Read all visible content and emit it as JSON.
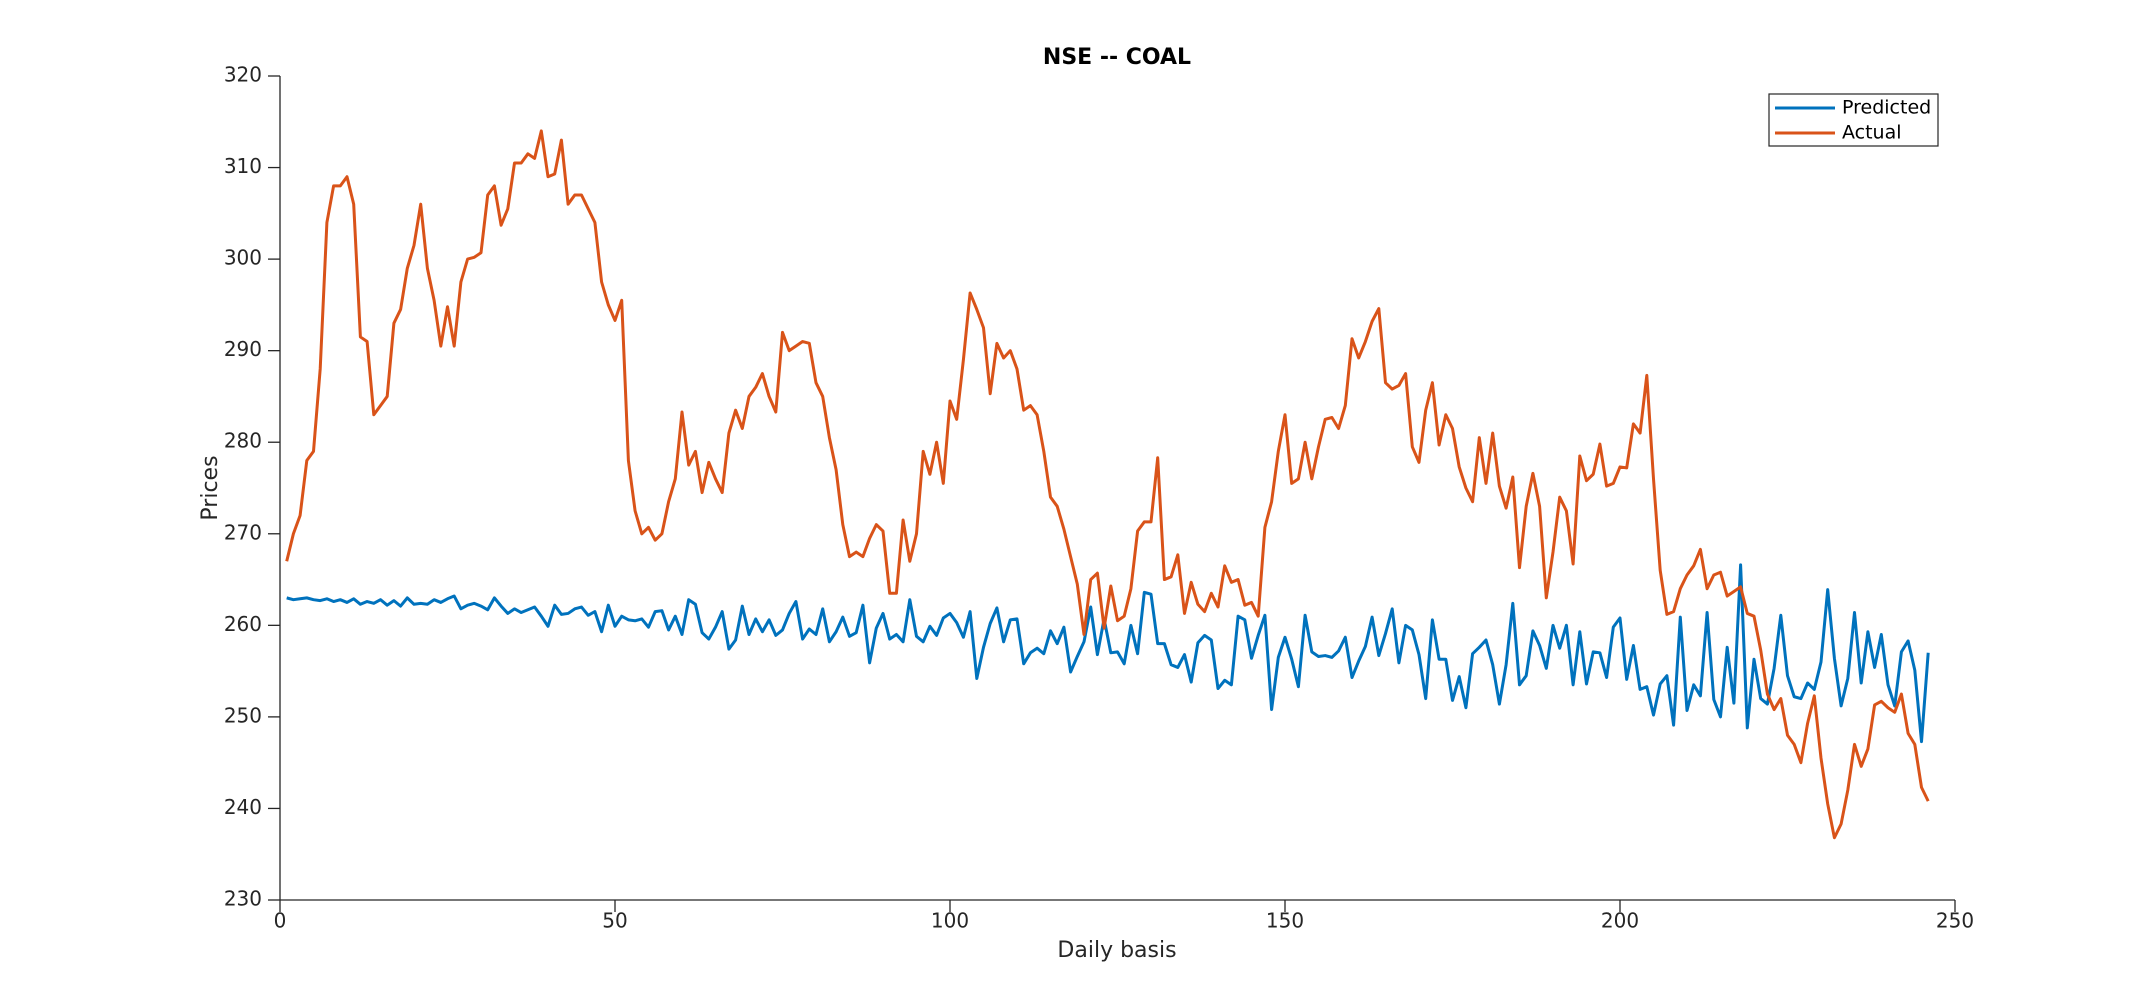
{
  "chart_data": {
    "type": "line",
    "title": "NSE -- COAL",
    "x_label": "Daily basis",
    "y_label": "Prices",
    "x": [
      1,
      2,
      3,
      4,
      5,
      6,
      7,
      8,
      9,
      10,
      11,
      12,
      13,
      14,
      15,
      16,
      17,
      18,
      19,
      20,
      21,
      22,
      23,
      24,
      25,
      26,
      27,
      28,
      29,
      30,
      31,
      32,
      33,
      34,
      35,
      36,
      37,
      38,
      39,
      40,
      41,
      42,
      43,
      44,
      45,
      46,
      47,
      48,
      49,
      50,
      51,
      52,
      53,
      54,
      55,
      56,
      57,
      58,
      59,
      60,
      61,
      62,
      63,
      64,
      65,
      66,
      67,
      68,
      69,
      70,
      71,
      72,
      73,
      74,
      75,
      76,
      77,
      78,
      79,
      80,
      81,
      82,
      83,
      84,
      85,
      86,
      87,
      88,
      89,
      90,
      91,
      92,
      93,
      94,
      95,
      96,
      97,
      98,
      99,
      100,
      101,
      102,
      103,
      104,
      105,
      106,
      107,
      108,
      109,
      110,
      111,
      112,
      113,
      114,
      115,
      116,
      117,
      118,
      119,
      120,
      121,
      122,
      123,
      124,
      125,
      126,
      127,
      128,
      129,
      130,
      131,
      132,
      133,
      134,
      135,
      136,
      137,
      138,
      139,
      140,
      141,
      142,
      143,
      144,
      145,
      146,
      147,
      148,
      149,
      150,
      151,
      152,
      153,
      154,
      155,
      156,
      157,
      158,
      159,
      160,
      161,
      162,
      163,
      164,
      165,
      166,
      167,
      168,
      169,
      170,
      171,
      172,
      173,
      174,
      175,
      176,
      177,
      178,
      179,
      180,
      181,
      182,
      183,
      184,
      185,
      186,
      187,
      188,
      189,
      190,
      191,
      192,
      193,
      194,
      195,
      196,
      197,
      198,
      199,
      200,
      201,
      202,
      203,
      204,
      205,
      206,
      207,
      208,
      209,
      210,
      211,
      212,
      213,
      214,
      215,
      216,
      217,
      218,
      219,
      220,
      221,
      222,
      223,
      224,
      225,
      226,
      227,
      228,
      229,
      230,
      231,
      232,
      233,
      234,
      235,
      236,
      237,
      238,
      239,
      240,
      241,
      242,
      243,
      244,
      245,
      246
    ],
    "series": [
      {
        "name": "Predicted",
        "color": "#0072bd",
        "values": [
          263,
          262.8,
          262.9,
          263,
          262.8,
          262.7,
          262.9,
          262.6,
          262.8,
          262.5,
          262.9,
          262.3,
          262.6,
          262.4,
          262.8,
          262.2,
          262.7,
          262.1,
          263,
          262.3,
          262.4,
          262.3,
          262.8,
          262.5,
          262.9,
          263.2,
          261.8,
          262.2,
          262.4,
          262.1,
          261.7,
          263,
          262.1,
          261.3,
          261.8,
          261.4,
          261.7,
          262,
          261,
          259.9,
          262.2,
          261.2,
          261.3,
          261.8,
          262,
          261.1,
          261.5,
          259.3,
          262.2,
          259.9,
          261,
          260.6,
          260.5,
          260.7,
          259.8,
          261.5,
          261.6,
          259.5,
          261,
          259,
          262.8,
          262.3,
          259.2,
          258.5,
          259.8,
          261.5,
          257.4,
          258.4,
          262.1,
          259,
          260.7,
          259.3,
          260.6,
          258.9,
          259.5,
          261.3,
          262.6,
          258.5,
          259.6,
          259,
          261.8,
          258.2,
          259.3,
          260.9,
          258.8,
          259.2,
          262.2,
          255.9,
          259.7,
          261.3,
          258.5,
          259,
          258.2,
          262.8,
          258.8,
          258.2,
          259.9,
          258.9,
          260.8,
          261.3,
          260.3,
          258.7,
          261.5,
          254.2,
          257.6,
          260.2,
          261.9,
          258.2,
          260.6,
          260.7,
          255.8,
          257,
          257.5,
          256.9,
          259.4,
          258,
          259.8,
          254.9,
          256.6,
          258.2,
          262,
          256.8,
          260.7,
          257,
          257.1,
          255.8,
          260,
          256.9,
          263.6,
          263.4,
          258,
          258,
          255.7,
          255.4,
          256.8,
          253.8,
          258.1,
          258.9,
          258.4,
          253.1,
          254,
          253.5,
          261,
          260.6,
          256.4,
          258.9,
          261.1,
          250.8,
          256.5,
          258.7,
          256.3,
          253.3,
          261.1,
          257.1,
          256.6,
          256.7,
          256.5,
          257.2,
          258.7,
          254.3,
          256.1,
          257.7,
          260.9,
          256.7,
          259.1,
          261.8,
          255.9,
          260,
          259.5,
          256.8,
          252,
          260.6,
          256.3,
          256.3,
          251.8,
          254.4,
          251,
          256.9,
          257.6,
          258.4,
          255.7,
          251.4,
          255.7,
          262.4,
          253.5,
          254.5,
          259.4,
          257.8,
          255.3,
          260,
          257.5,
          260,
          253.5,
          259.3,
          253.6,
          257.1,
          257,
          254.3,
          259.8,
          260.8,
          254.1,
          257.8,
          253,
          253.3,
          250.2,
          253.6,
          254.5,
          249.1,
          260.9,
          250.7,
          253.5,
          252.3,
          261.4,
          251.9,
          250,
          257.6,
          251.5,
          266.6,
          248.8,
          256.3,
          252,
          251.4,
          255.3,
          261.1,
          254.5,
          252.2,
          252,
          253.7,
          253,
          256,
          263.9,
          256.4,
          251.2,
          254.2,
          261.4,
          253.7,
          259.3,
          255.4,
          259,
          253.5,
          251.2,
          257.1,
          258.3,
          255.1,
          247.3,
          257
        ]
      },
      {
        "name": "Actual",
        "color": "#d95319",
        "values": [
          267,
          270,
          272,
          278,
          279,
          288,
          304,
          308,
          308,
          309,
          306,
          291.5,
          291,
          283,
          284,
          285,
          293,
          294.5,
          299,
          301.5,
          306,
          299,
          295.5,
          290.5,
          294.8,
          290.5,
          297.5,
          300,
          300.2,
          300.7,
          307,
          308,
          303.7,
          305.5,
          310.5,
          310.5,
          311.5,
          311,
          314,
          309,
          309.3,
          313,
          306,
          307,
          307,
          305.5,
          304,
          297.5,
          295,
          293.3,
          295.5,
          278,
          272.5,
          270,
          270.7,
          269.3,
          270,
          273.5,
          276,
          283.3,
          277.5,
          279,
          274.5,
          277.8,
          276,
          274.5,
          281,
          283.5,
          281.5,
          285,
          286,
          287.5,
          285,
          283.3,
          292,
          290,
          290.5,
          291,
          290.8,
          286.5,
          285,
          280.5,
          277,
          271,
          267.5,
          268,
          267.5,
          269.5,
          271,
          270.3,
          263.5,
          263.5,
          271.5,
          267,
          270,
          279,
          276.5,
          280,
          275.5,
          284.5,
          282.5,
          289,
          296.3,
          294.5,
          292.5,
          285.3,
          290.8,
          289.2,
          290,
          288,
          283.5,
          284,
          283,
          279,
          274,
          273,
          270.5,
          267.5,
          264.5,
          259,
          265,
          265.7,
          259.7,
          264.3,
          260.5,
          261,
          264,
          270.3,
          271.3,
          271.3,
          278.3,
          265,
          265.3,
          267.7,
          261.3,
          264.7,
          262.3,
          261.5,
          263.5,
          262,
          266.5,
          264.7,
          265,
          262.2,
          262.5,
          261,
          270.7,
          273.5,
          279,
          283,
          275.5,
          276,
          280,
          276,
          279.5,
          282.5,
          282.7,
          281.5,
          284,
          291.3,
          289.2,
          291,
          293.2,
          294.6,
          286.5,
          285.8,
          286.2,
          287.5,
          279.5,
          277.8,
          283.5,
          286.5,
          279.7,
          283,
          281.5,
          277.3,
          275,
          273.5,
          280.5,
          275.5,
          281,
          275.2,
          272.8,
          276.2,
          266.3,
          273,
          276.6,
          273,
          263,
          268,
          274,
          272.5,
          266.7,
          278.5,
          275.8,
          276.5,
          279.8,
          275.2,
          275.5,
          277.3,
          277.2,
          282,
          281,
          287.3,
          276,
          266,
          261.2,
          261.5,
          264,
          265.5,
          266.5,
          268.3,
          264,
          265.5,
          265.8,
          263.2,
          263.7,
          264.2,
          261.3,
          261,
          257.3,
          252.5,
          250.8,
          252,
          248,
          247,
          245,
          249.3,
          252.3,
          245.5,
          240.5,
          236.8,
          238.3,
          242,
          247,
          244.6,
          246.5,
          251.3,
          251.7,
          251,
          250.5,
          252.5,
          248.2,
          247,
          242.3,
          240.8
        ]
      }
    ],
    "xlim": [
      0,
      250
    ],
    "xticks": [
      0,
      50,
      100,
      150,
      200,
      250
    ],
    "ylim": [
      230,
      320
    ],
    "yticks": [
      230,
      240,
      250,
      260,
      270,
      280,
      290,
      300,
      310,
      320
    ],
    "legend": "upper right"
  }
}
